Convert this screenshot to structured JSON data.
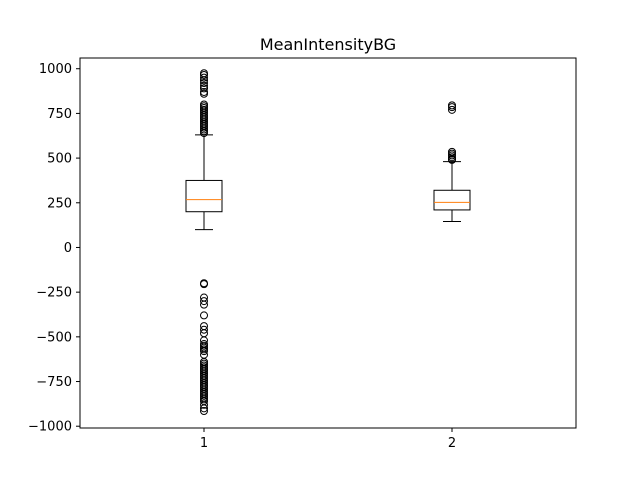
{
  "chart_data": {
    "type": "box",
    "title": "MeanIntensityBG",
    "xlabel": "",
    "ylabel": "",
    "ylim": [
      -1010,
      1060
    ],
    "yticks": [
      -1000,
      -750,
      -500,
      -250,
      0,
      250,
      500,
      750,
      1000
    ],
    "ytick_labels": [
      "−1000",
      "−750",
      "−500",
      "−250",
      "0",
      "250",
      "500",
      "750",
      "1000"
    ],
    "categories": [
      "1",
      "2"
    ],
    "grid": false,
    "boxes": [
      {
        "category": "1",
        "whisker_low": 100,
        "q1": 200,
        "median": 268,
        "q3": 375,
        "whisker_high": 630,
        "outliers": [
          975,
          965,
          950,
          935,
          920,
          905,
          890,
          870,
          860,
          800,
          790,
          780,
          770,
          760,
          750,
          740,
          730,
          720,
          710,
          700,
          690,
          680,
          670,
          660,
          650,
          640,
          -200,
          -205,
          -280,
          -300,
          -320,
          -380,
          -440,
          -460,
          -480,
          -520,
          -540,
          -550,
          -560,
          -570,
          -580,
          -600,
          -640,
          -650,
          -660,
          -670,
          -680,
          -690,
          -700,
          -710,
          -720,
          -730,
          -740,
          -750,
          -760,
          -770,
          -780,
          -790,
          -800,
          -810,
          -820,
          -830,
          -840,
          -850,
          -860,
          -880,
          -900,
          -915
        ]
      },
      {
        "category": "2",
        "whisker_low": 145,
        "q1": 210,
        "median": 252,
        "q3": 320,
        "whisker_high": 480,
        "outliers": [
          795,
          785,
          770,
          535,
          525,
          515,
          505,
          495,
          490
        ]
      }
    ],
    "colors": {
      "median": "#ff7f0e",
      "box": "#000000",
      "background": "#ffffff"
    }
  }
}
